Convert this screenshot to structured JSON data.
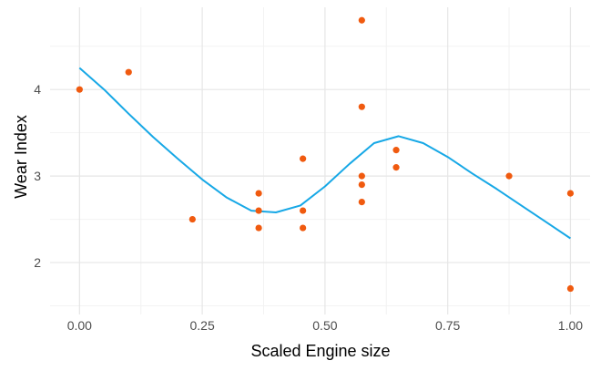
{
  "chart_data": {
    "type": "scatter",
    "title": "",
    "xlabel": "Scaled Engine size",
    "ylabel": "Wear Index",
    "xlim": [
      -0.06,
      1.04
    ],
    "ylim": [
      1.4,
      4.95
    ],
    "x_ticks": [
      0.0,
      0.25,
      0.5,
      0.75,
      1.0
    ],
    "x_tick_labels": [
      "0.00",
      "0.25",
      "0.50",
      "0.75",
      "1.00"
    ],
    "y_ticks": [
      2,
      3,
      4
    ],
    "y_tick_labels": [
      "2",
      "3",
      "4"
    ],
    "grid": true,
    "legend": "none",
    "colors": {
      "points": "#f05a0f",
      "fit": "#17a8e6",
      "grid_major": "#e6e6e6",
      "grid_minor": "#f2f2f2"
    },
    "series": [
      {
        "kind": "points",
        "x": [
          0.0,
          0.1,
          0.23,
          0.365,
          0.365,
          0.365,
          0.455,
          0.455,
          0.455,
          0.575,
          0.575,
          0.575,
          0.575,
          0.575,
          0.645,
          0.645,
          0.875,
          1.0,
          1.0
        ],
        "y": [
          4.0,
          4.2,
          2.5,
          2.8,
          2.6,
          2.4,
          3.2,
          2.6,
          2.4,
          4.8,
          3.8,
          3.0,
          2.9,
          2.7,
          3.3,
          3.1,
          3.0,
          2.8,
          1.7
        ]
      },
      {
        "kind": "line",
        "x": [
          0.0,
          0.05,
          0.1,
          0.15,
          0.2,
          0.25,
          0.3,
          0.35,
          0.4,
          0.45,
          0.5,
          0.55,
          0.6,
          0.65,
          0.7,
          0.75,
          0.8,
          0.85,
          0.9,
          0.95,
          1.0
        ],
        "y": [
          4.25,
          4.0,
          3.72,
          3.45,
          3.2,
          2.96,
          2.75,
          2.6,
          2.58,
          2.66,
          2.88,
          3.14,
          3.38,
          3.46,
          3.38,
          3.22,
          3.03,
          2.85,
          2.66,
          2.47,
          2.28
        ]
      }
    ]
  }
}
